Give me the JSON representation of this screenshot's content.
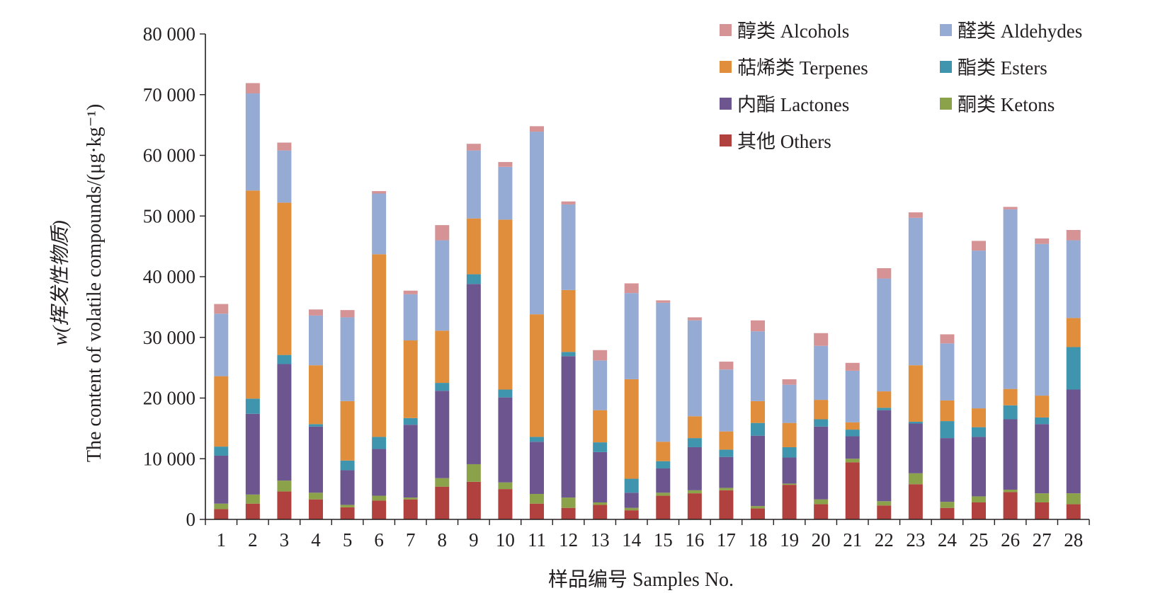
{
  "chart_data": {
    "type": "stacked-bar",
    "title": "",
    "xlabel": "样品编号 Samples No.",
    "ylabel_cn": "w(挥发性物质)",
    "ylabel_en": "The content of volatile compounds/(μg·kg⁻¹)",
    "ylim": [
      0,
      80000
    ],
    "ytick_values": [
      0,
      10000,
      20000,
      30000,
      40000,
      50000,
      60000,
      70000,
      80000
    ],
    "ytick_labels": [
      "0",
      "10 000",
      "20 000",
      "30 000",
      "40 000",
      "50 000",
      "60 000",
      "70 000",
      "80 000"
    ],
    "categories": [
      "1",
      "2",
      "3",
      "4",
      "5",
      "6",
      "7",
      "8",
      "9",
      "10",
      "11",
      "12",
      "13",
      "14",
      "15",
      "16",
      "17",
      "18",
      "19",
      "20",
      "21",
      "22",
      "23",
      "24",
      "25",
      "26",
      "27",
      "28"
    ],
    "legend_position": "top-right",
    "series": [
      {
        "name": "其他 Others",
        "color": "#b0413e",
        "values": [
          1700,
          2600,
          4600,
          3300,
          2000,
          3100,
          3300,
          5400,
          6200,
          5000,
          2600,
          1900,
          2400,
          1500,
          3900,
          4300,
          4800,
          1800,
          5700,
          2500,
          9400,
          2300,
          5800,
          1900,
          2800,
          4500,
          2800,
          2500
        ]
      },
      {
        "name": "酮类 Ketons",
        "color": "#8ca24a",
        "values": [
          900,
          1500,
          1800,
          1100,
          400,
          800,
          300,
          1400,
          2900,
          1100,
          1600,
          1700,
          400,
          400,
          500,
          500,
          400,
          400,
          200,
          800,
          600,
          700,
          1800,
          1000,
          1000,
          400,
          1500,
          1800
        ]
      },
      {
        "name": "内酯 Lactones",
        "color": "#6d5690",
        "values": [
          7900,
          13300,
          19200,
          10900,
          5700,
          7700,
          12000,
          14400,
          29700,
          14000,
          8600,
          23300,
          8300,
          2500,
          4000,
          7100,
          5100,
          11600,
          4300,
          12000,
          3700,
          15000,
          8200,
          10500,
          9800,
          11600,
          11400,
          17100
        ]
      },
      {
        "name": "酯类 Esters",
        "color": "#3f95ad",
        "values": [
          1500,
          2500,
          1500,
          400,
          1600,
          2000,
          1100,
          1300,
          1600,
          1300,
          800,
          700,
          1600,
          2300,
          1200,
          1500,
          1200,
          2100,
          1700,
          1200,
          1100,
          400,
          300,
          2800,
          1600,
          2300,
          1100,
          7000
        ]
      },
      {
        "name": "萜烯类 Terpenes",
        "color": "#e08d3c",
        "values": [
          11600,
          34300,
          25100,
          9700,
          9800,
          30100,
          12800,
          8600,
          9200,
          28000,
          20200,
          10200,
          5300,
          16400,
          3200,
          3600,
          3000,
          3600,
          4000,
          3200,
          1200,
          2700,
          9300,
          3400,
          3100,
          2700,
          3600,
          4800
        ]
      },
      {
        "name": "醛类 Aldehydes",
        "color": "#95abd4",
        "values": [
          10300,
          16000,
          8600,
          8200,
          13800,
          10000,
          7600,
          14900,
          11200,
          8700,
          30100,
          14100,
          8200,
          14200,
          22900,
          15800,
          10200,
          11500,
          6300,
          8900,
          8500,
          18600,
          24300,
          9400,
          26000,
          29600,
          25000,
          12800
        ]
      },
      {
        "name": "醇类 Alcohols",
        "color": "#d69396",
        "values": [
          1600,
          1700,
          1300,
          1000,
          1200,
          400,
          600,
          2500,
          1100,
          800,
          900,
          500,
          1700,
          1600,
          400,
          500,
          1300,
          1800,
          900,
          2100,
          1300,
          1700,
          900,
          1500,
          1600,
          400,
          900,
          1700
        ]
      }
    ]
  }
}
